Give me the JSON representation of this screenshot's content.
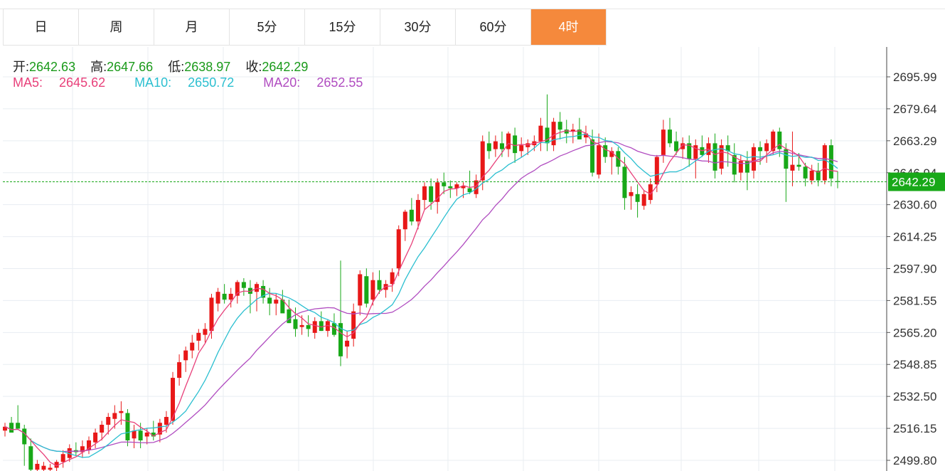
{
  "tabs": [
    {
      "label": "日"
    },
    {
      "label": "周"
    },
    {
      "label": "月"
    },
    {
      "label": "5分"
    },
    {
      "label": "15分"
    },
    {
      "label": "30分"
    },
    {
      "label": "60分"
    },
    {
      "label": "4时"
    }
  ],
  "active_tab": 7,
  "ohlc": {
    "open_label": "开:",
    "open": "2642.63",
    "high_label": "高:",
    "high": "2647.66",
    "low_label": "低:",
    "low": "2638.97",
    "close_label": "收:",
    "close": "2642.29"
  },
  "ma": {
    "ma5_label": "MA5:",
    "ma5": "2645.62",
    "ma10_label": "MA10:",
    "ma10": "2650.72",
    "ma20_label": "MA20:",
    "ma20": "2652.55"
  },
  "colors": {
    "up": "#e81818",
    "down": "#18a818",
    "ma5": "#e8407a",
    "ma10": "#2bbfd0",
    "ma20": "#b04cc0",
    "active_tab": "#f5893c"
  },
  "chart_data": {
    "type": "candlestick",
    "y_ticks": [
      "2695.99",
      "2679.64",
      "2663.29",
      "2646.94",
      "2630.60",
      "2614.25",
      "2597.90",
      "2581.55",
      "2565.20",
      "2548.85",
      "2532.50",
      "2516.15",
      "2499.80"
    ],
    "ylim": [
      2497,
      2710
    ],
    "last_price": "2642.29",
    "candles": [
      [
        2515,
        2519,
        2512,
        2517
      ],
      [
        2519,
        2522,
        2514,
        2514
      ],
      [
        2519,
        2528,
        2516,
        2516
      ],
      [
        2516,
        2518,
        2497,
        2508
      ],
      [
        2507,
        2511,
        2492,
        2495
      ],
      [
        2495,
        2500,
        2490,
        2498
      ],
      [
        2495,
        2499,
        2492,
        2497
      ],
      [
        2495,
        2498,
        2492,
        2496
      ],
      [
        2496,
        2500,
        2493,
        2499
      ],
      [
        2499,
        2505,
        2496,
        2503
      ],
      [
        2501,
        2508,
        2499,
        2506
      ],
      [
        2505,
        2509,
        2502,
        2504
      ],
      [
        2504,
        2510,
        2501,
        2507
      ],
      [
        2505,
        2512,
        2503,
        2510
      ],
      [
        2509,
        2516,
        2506,
        2514
      ],
      [
        2514,
        2520,
        2510,
        2518
      ],
      [
        2518,
        2524,
        2513,
        2522
      ],
      [
        2521,
        2528,
        2516,
        2524
      ],
      [
        2524,
        2530,
        2518,
        2525
      ],
      [
        2524,
        2526,
        2507,
        2510
      ],
      [
        2511,
        2518,
        2506,
        2515
      ],
      [
        2515,
        2519,
        2506,
        2510
      ],
      [
        2512,
        2516,
        2508,
        2514
      ],
      [
        2514,
        2520,
        2510,
        2512
      ],
      [
        2513,
        2521,
        2509,
        2519
      ],
      [
        2518,
        2525,
        2514,
        2522
      ],
      [
        2520,
        2545,
        2518,
        2542
      ],
      [
        2542,
        2554,
        2538,
        2550
      ],
      [
        2551,
        2558,
        2545,
        2556
      ],
      [
        2556,
        2564,
        2552,
        2560
      ],
      [
        2561,
        2567,
        2556,
        2565
      ],
      [
        2564,
        2570,
        2560,
        2567
      ],
      [
        2566,
        2585,
        2562,
        2583
      ],
      [
        2580,
        2588,
        2576,
        2586
      ],
      [
        2585,
        2590,
        2580,
        2582
      ],
      [
        2582,
        2588,
        2578,
        2585
      ],
      [
        2584,
        2592,
        2580,
        2591
      ],
      [
        2591,
        2593,
        2584,
        2588
      ],
      [
        2588,
        2592,
        2575,
        2585
      ],
      [
        2586,
        2591,
        2576,
        2590
      ],
      [
        2589,
        2592,
        2580,
        2583
      ],
      [
        2583,
        2588,
        2574,
        2580
      ],
      [
        2580,
        2585,
        2574,
        2582
      ],
      [
        2582,
        2587,
        2576,
        2575
      ],
      [
        2577,
        2582,
        2570,
        2570
      ],
      [
        2572,
        2578,
        2563,
        2567
      ],
      [
        2568,
        2574,
        2564,
        2569
      ],
      [
        2569,
        2574,
        2563,
        2567
      ],
      [
        2565,
        2573,
        2562,
        2571
      ],
      [
        2571,
        2576,
        2566,
        2566
      ],
      [
        2566,
        2572,
        2563,
        2571
      ],
      [
        2570,
        2575,
        2563,
        2564
      ],
      [
        2570,
        2602,
        2548,
        2553
      ],
      [
        2558,
        2566,
        2552,
        2561
      ],
      [
        2562,
        2580,
        2558,
        2576
      ],
      [
        2579,
        2597,
        2574,
        2595
      ],
      [
        2594,
        2598,
        2578,
        2580
      ],
      [
        2582,
        2596,
        2579,
        2592
      ],
      [
        2592,
        2597,
        2585,
        2587
      ],
      [
        2587,
        2592,
        2583,
        2590
      ],
      [
        2590,
        2598,
        2586,
        2596
      ],
      [
        2598,
        2620,
        2594,
        2618
      ],
      [
        2618,
        2628,
        2612,
        2627
      ],
      [
        2628,
        2634,
        2620,
        2622
      ],
      [
        2622,
        2636,
        2618,
        2633
      ],
      [
        2633,
        2642,
        2628,
        2640
      ],
      [
        2640,
        2644,
        2628,
        2632
      ],
      [
        2632,
        2644,
        2626,
        2642
      ],
      [
        2642,
        2647,
        2636,
        2640
      ],
      [
        2640,
        2643,
        2634,
        2639
      ],
      [
        2639,
        2642,
        2635,
        2641
      ],
      [
        2639,
        2642,
        2634,
        2640
      ],
      [
        2639,
        2648,
        2636,
        2637
      ],
      [
        2636,
        2646,
        2634,
        2643
      ],
      [
        2643,
        2666,
        2638,
        2663
      ],
      [
        2662,
        2668,
        2654,
        2658
      ],
      [
        2659,
        2666,
        2655,
        2663
      ],
      [
        2662,
        2668,
        2655,
        2659
      ],
      [
        2659,
        2668,
        2655,
        2667
      ],
      [
        2666,
        2670,
        2652,
        2657
      ],
      [
        2658,
        2665,
        2655,
        2661
      ],
      [
        2660,
        2664,
        2656,
        2662
      ],
      [
        2661,
        2666,
        2658,
        2663
      ],
      [
        2663,
        2675,
        2658,
        2671
      ],
      [
        2670,
        2687,
        2658,
        2662
      ],
      [
        2661,
        2675,
        2658,
        2673
      ],
      [
        2673,
        2678,
        2664,
        2669
      ],
      [
        2669,
        2674,
        2662,
        2667
      ],
      [
        2668,
        2672,
        2662,
        2669
      ],
      [
        2669,
        2675,
        2664,
        2664
      ],
      [
        2665,
        2671,
        2662,
        2667
      ],
      [
        2664,
        2669,
        2645,
        2647
      ],
      [
        2646,
        2667,
        2644,
        2661
      ],
      [
        2661,
        2665,
        2652,
        2655
      ],
      [
        2655,
        2660,
        2646,
        2658
      ],
      [
        2658,
        2660,
        2646,
        2650
      ],
      [
        2650,
        2655,
        2628,
        2634
      ],
      [
        2635,
        2640,
        2628,
        2637
      ],
      [
        2636,
        2641,
        2624,
        2632
      ],
      [
        2630,
        2638,
        2628,
        2636
      ],
      [
        2633,
        2644,
        2631,
        2641
      ],
      [
        2641,
        2656,
        2637,
        2655
      ],
      [
        2656,
        2674,
        2652,
        2669
      ],
      [
        2669,
        2675,
        2660,
        2662
      ],
      [
        2663,
        2668,
        2656,
        2658
      ],
      [
        2659,
        2665,
        2654,
        2662
      ],
      [
        2662,
        2666,
        2650,
        2654
      ],
      [
        2654,
        2664,
        2644,
        2661
      ],
      [
        2660,
        2666,
        2655,
        2656
      ],
      [
        2656,
        2665,
        2652,
        2662
      ],
      [
        2662,
        2667,
        2644,
        2648
      ],
      [
        2649,
        2664,
        2646,
        2661
      ],
      [
        2661,
        2666,
        2650,
        2658
      ],
      [
        2656,
        2662,
        2642,
        2646
      ],
      [
        2647,
        2656,
        2643,
        2653
      ],
      [
        2653,
        2658,
        2638,
        2647
      ],
      [
        2648,
        2662,
        2644,
        2660
      ],
      [
        2660,
        2663,
        2651,
        2658
      ],
      [
        2658,
        2664,
        2652,
        2662
      ],
      [
        2658,
        2669,
        2656,
        2668
      ],
      [
        2668,
        2670,
        2655,
        2659
      ],
      [
        2659,
        2662,
        2632,
        2649
      ],
      [
        2648,
        2668,
        2640,
        2651
      ],
      [
        2651,
        2657,
        2648,
        2650
      ],
      [
        2650,
        2652,
        2640,
        2644
      ],
      [
        2643,
        2651,
        2641,
        2648
      ],
      [
        2648,
        2652,
        2640,
        2643
      ],
      [
        2643,
        2662,
        2641,
        2661
      ],
      [
        2661,
        2664,
        2640,
        2644
      ],
      [
        2642.63,
        2647.66,
        2638.97,
        2642.29
      ]
    ]
  }
}
